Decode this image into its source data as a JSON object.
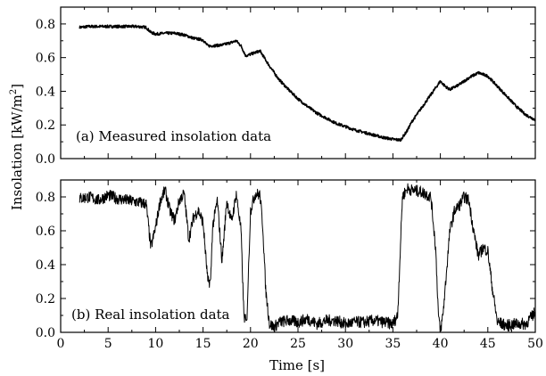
{
  "chart_data": [
    {
      "type": "line",
      "panel_label": "(a) Measured insolation data",
      "xlim": [
        0,
        50
      ],
      "ylim": [
        0.0,
        0.9
      ],
      "x_ticks": [
        0,
        5,
        10,
        15,
        20,
        25,
        30,
        35,
        40,
        45,
        50
      ],
      "y_ticks": [
        "0.0",
        "0.2",
        "0.4",
        "0.6",
        "0.8"
      ],
      "y_tick_values": [
        0.0,
        0.2,
        0.4,
        0.6,
        0.8
      ],
      "grid": false,
      "series": [
        {
          "x": [
            2,
            3,
            4,
            5,
            6,
            7,
            8,
            9,
            9.5,
            10,
            11,
            12,
            13,
            14,
            15,
            15.5,
            16,
            17,
            18,
            18.5,
            19,
            19.5,
            20,
            21,
            22,
            23,
            24,
            25,
            26,
            27,
            28,
            29,
            30,
            31,
            32,
            33,
            34,
            35,
            35.8,
            36.5,
            37,
            38,
            39,
            40,
            40.5,
            41,
            42,
            43,
            44,
            45,
            46,
            47,
            48,
            49,
            50
          ],
          "y": [
            0.78,
            0.785,
            0.785,
            0.785,
            0.785,
            0.785,
            0.785,
            0.78,
            0.75,
            0.74,
            0.745,
            0.745,
            0.735,
            0.715,
            0.705,
            0.67,
            0.67,
            0.675,
            0.69,
            0.7,
            0.67,
            0.61,
            0.62,
            0.64,
            0.55,
            0.47,
            0.41,
            0.355,
            0.31,
            0.27,
            0.24,
            0.21,
            0.19,
            0.17,
            0.155,
            0.14,
            0.125,
            0.115,
            0.11,
            0.165,
            0.22,
            0.3,
            0.38,
            0.46,
            0.43,
            0.41,
            0.44,
            0.48,
            0.51,
            0.49,
            0.43,
            0.37,
            0.31,
            0.26,
            0.23
          ]
        }
      ]
    },
    {
      "type": "line",
      "panel_label": "(b) Real insolation data",
      "xlim": [
        0,
        50
      ],
      "ylim": [
        0.0,
        0.9
      ],
      "x_ticks": [
        0,
        5,
        10,
        15,
        20,
        25,
        30,
        35,
        40,
        45,
        50
      ],
      "y_ticks": [
        "0.0",
        "0.2",
        "0.4",
        "0.6",
        "0.8"
      ],
      "y_tick_values": [
        0.0,
        0.2,
        0.4,
        0.6,
        0.8
      ],
      "grid": false,
      "series": [
        {
          "x": [
            2,
            3,
            4,
            5,
            6,
            7,
            8,
            9,
            9.5,
            10,
            10.5,
            11,
            11.5,
            12,
            12.5,
            13,
            13.5,
            14,
            14.5,
            15,
            15.5,
            15.8,
            16,
            16.5,
            17,
            17.5,
            18,
            18.5,
            19,
            19.3,
            19.6,
            20,
            20.5,
            21,
            21.3,
            21.6,
            22,
            22.5,
            23,
            24,
            25,
            26,
            27,
            28,
            29,
            30,
            31,
            32,
            33,
            34,
            35,
            35.5,
            36,
            36.5,
            37,
            38,
            39,
            39.5,
            39.8,
            40,
            40.3,
            41,
            41.5,
            42,
            42.5,
            43,
            43.5,
            44,
            44.5,
            45,
            45.5,
            46,
            47,
            48,
            49,
            50
          ],
          "y": [
            0.79,
            0.8,
            0.78,
            0.81,
            0.79,
            0.78,
            0.77,
            0.76,
            0.5,
            0.62,
            0.78,
            0.84,
            0.72,
            0.66,
            0.78,
            0.82,
            0.55,
            0.68,
            0.72,
            0.65,
            0.3,
            0.3,
            0.62,
            0.78,
            0.42,
            0.78,
            0.65,
            0.82,
            0.6,
            0.1,
            0.05,
            0.72,
            0.82,
            0.81,
            0.62,
            0.25,
            0.05,
            0.03,
            0.06,
            0.07,
            0.06,
            0.08,
            0.05,
            0.07,
            0.07,
            0.05,
            0.06,
            0.06,
            0.07,
            0.06,
            0.05,
            0.1,
            0.8,
            0.85,
            0.84,
            0.83,
            0.8,
            0.5,
            0.1,
            0.0,
            0.12,
            0.6,
            0.72,
            0.75,
            0.8,
            0.78,
            0.6,
            0.45,
            0.5,
            0.48,
            0.25,
            0.06,
            0.04,
            0.05,
            0.05,
            0.12
          ]
        }
      ]
    }
  ],
  "y_axis_title": "Insolation [kW/m",
  "y_axis_title_sup": "2",
  "y_axis_title_end": "]",
  "x_axis_title": "Time [s]"
}
